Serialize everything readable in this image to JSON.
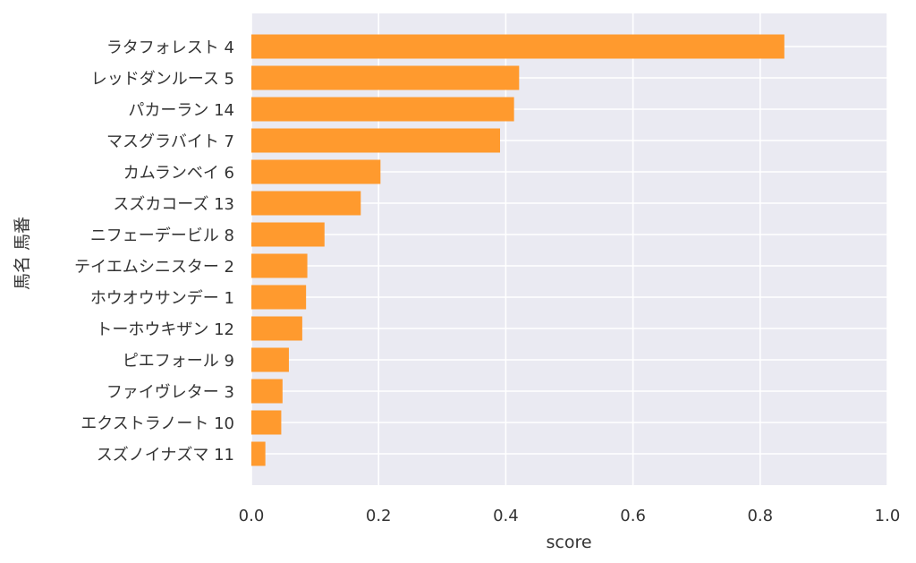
{
  "chart_data": {
    "type": "bar",
    "orientation": "horizontal",
    "xlabel": "score",
    "ylabel": "馬名 馬番",
    "xlim": [
      0,
      1.0
    ],
    "xticks": [
      "0.0",
      "0.2",
      "0.4",
      "0.6",
      "0.8",
      "1.0"
    ],
    "grid": true,
    "bar_color": "#ff9a2e",
    "plot_background": "#eaeaf2",
    "categories": [
      "ラタフォレスト 4",
      "レッドダンルース 5",
      "パカーラン 14",
      "マスグラバイト 7",
      "カムランベイ 6",
      "スズカコーズ 13",
      "ニフェーデービル 8",
      "テイエムシニスター 2",
      "ホウオウサンデー 1",
      "トーホウキザン 12",
      "ピエフォール 9",
      "ファイヴレター 3",
      "エクストラノート 10",
      "スズノイナズマ 11"
    ],
    "values": [
      0.838,
      0.421,
      0.413,
      0.391,
      0.203,
      0.172,
      0.115,
      0.088,
      0.086,
      0.08,
      0.059,
      0.049,
      0.047,
      0.022
    ]
  }
}
